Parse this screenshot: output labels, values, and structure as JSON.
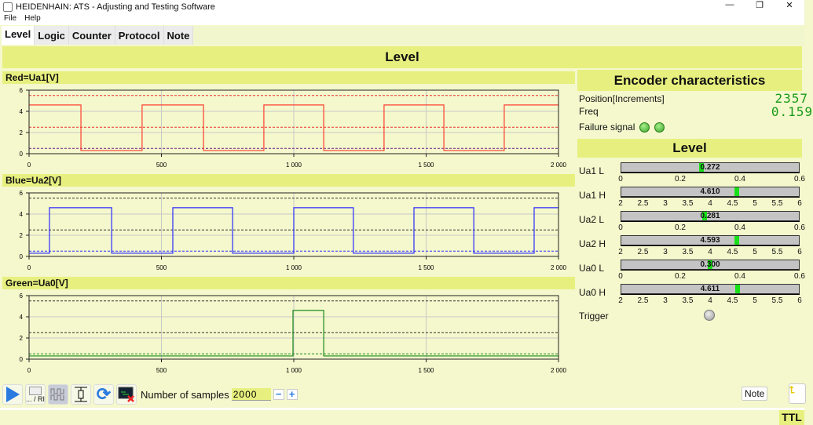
{
  "window": {
    "title": "HEIDENHAIN: ATS - Adjusting and Testing Software",
    "minimize": "—",
    "maximize": "❐",
    "close": "✕"
  },
  "menu": [
    "File",
    "Help"
  ],
  "tabs": [
    "Level",
    "Logic",
    "Counter",
    "Protocol",
    "Note"
  ],
  "banner": "Level",
  "chart_data": [
    {
      "type": "line",
      "title": "Red=Ua1[V]",
      "color": "#ff3b2f",
      "xlim": [
        0,
        2000
      ],
      "ylim": [
        0,
        6
      ],
      "xticks": [
        "0",
        "500",
        "1 000",
        "1 500",
        "2 000"
      ],
      "yticks": [
        "0",
        "2",
        "4",
        "6"
      ],
      "levels": {
        "low": 0.3,
        "high": 4.6
      },
      "start": "high",
      "transitions": [
        196,
        427,
        659,
        887,
        1113,
        1341,
        1567,
        1795
      ],
      "thresholds": [
        {
          "y": 5.5,
          "color": "#e83030"
        },
        {
          "y": 2.5,
          "color": "#e83030"
        },
        {
          "y": 0.5,
          "color": "#6a1a8a"
        },
        {
          "y": 0,
          "color": "#b03070"
        }
      ]
    },
    {
      "type": "line",
      "title": "Blue=Ua2[V]",
      "color": "#2a2aff",
      "xlim": [
        0,
        2000
      ],
      "ylim": [
        0,
        6
      ],
      "xticks": [
        "0",
        "500",
        "1 000",
        "1 500",
        "2 000"
      ],
      "yticks": [
        "0",
        "2",
        "4",
        "6"
      ],
      "levels": {
        "low": 0.3,
        "high": 4.6
      },
      "start": "low",
      "transitions": [
        77,
        312,
        543,
        769,
        1000,
        1225,
        1454,
        1680,
        1908
      ],
      "thresholds": [
        {
          "y": 5.5,
          "color": "#333"
        },
        {
          "y": 2.5,
          "color": "#333"
        },
        {
          "y": 0.5,
          "color": "#2a2aff"
        },
        {
          "y": 0,
          "color": "#333"
        }
      ]
    },
    {
      "type": "line",
      "title": "Green=Ua0[V]",
      "color": "#1a8a1a",
      "xlim": [
        0,
        2000
      ],
      "ylim": [
        0,
        6
      ],
      "xticks": [
        "0",
        "500",
        "1 000",
        "1 500",
        "2 000"
      ],
      "yticks": [
        "0",
        "2",
        "4",
        "6"
      ],
      "levels": {
        "low": 0.3,
        "high": 4.6
      },
      "start": "low",
      "transitions": [
        997,
        1113
      ],
      "thresholds": [
        {
          "y": 5.5,
          "color": "#333"
        },
        {
          "y": 2.5,
          "color": "#333"
        },
        {
          "y": 0.5,
          "color": "#1a8a1a"
        },
        {
          "y": 0,
          "color": "#333"
        }
      ]
    }
  ],
  "encoder": {
    "title": "Encoder characteristics",
    "position_label": "Position[Increments]",
    "position_value": "2357",
    "freq_label": "Freq",
    "freq_value": "0.159",
    "failure_label": "Failure signal"
  },
  "level": {
    "title": "Level",
    "gauges": [
      {
        "label": "Ua1 L",
        "value": "0.272",
        "num": 0.272,
        "min": 0,
        "max": 0.6,
        "ticks": [
          "0",
          "0.2",
          "0.4",
          "0.6"
        ]
      },
      {
        "label": "Ua1 H",
        "value": "4.610",
        "num": 4.61,
        "min": 2,
        "max": 6,
        "ticks": [
          "2",
          "2.5",
          "3",
          "3.5",
          "4",
          "4.5",
          "5",
          "5.5",
          "6"
        ]
      },
      {
        "label": "Ua2 L",
        "value": "0.281",
        "num": 0.281,
        "min": 0,
        "max": 0.6,
        "ticks": [
          "0",
          "0.2",
          "0.4",
          "0.6"
        ]
      },
      {
        "label": "Ua2 H",
        "value": "4.593",
        "num": 4.593,
        "min": 2,
        "max": 6,
        "ticks": [
          "2",
          "2.5",
          "3",
          "3.5",
          "4",
          "4.5",
          "5",
          "5.5",
          "6"
        ]
      },
      {
        "label": "Ua0 L",
        "value": "0.300",
        "num": 0.3,
        "min": 0,
        "max": 0.6,
        "ticks": [
          "0",
          "0.2",
          "0.4",
          "0.6"
        ]
      },
      {
        "label": "Ua0 H",
        "value": "4.611",
        "num": 4.611,
        "min": 2,
        "max": 6,
        "ticks": [
          "2",
          "2.5",
          "3",
          "3.5",
          "4",
          "4.5",
          "5",
          "5.5",
          "6"
        ]
      }
    ],
    "trigger_label": "Trigger"
  },
  "toolbar": {
    "ri_label": "... / RI",
    "samples_label": "Number of samples",
    "samples_value": "2000",
    "minus": "−",
    "plus": "+",
    "note": "Note"
  },
  "status": {
    "ttl": "TTL"
  }
}
